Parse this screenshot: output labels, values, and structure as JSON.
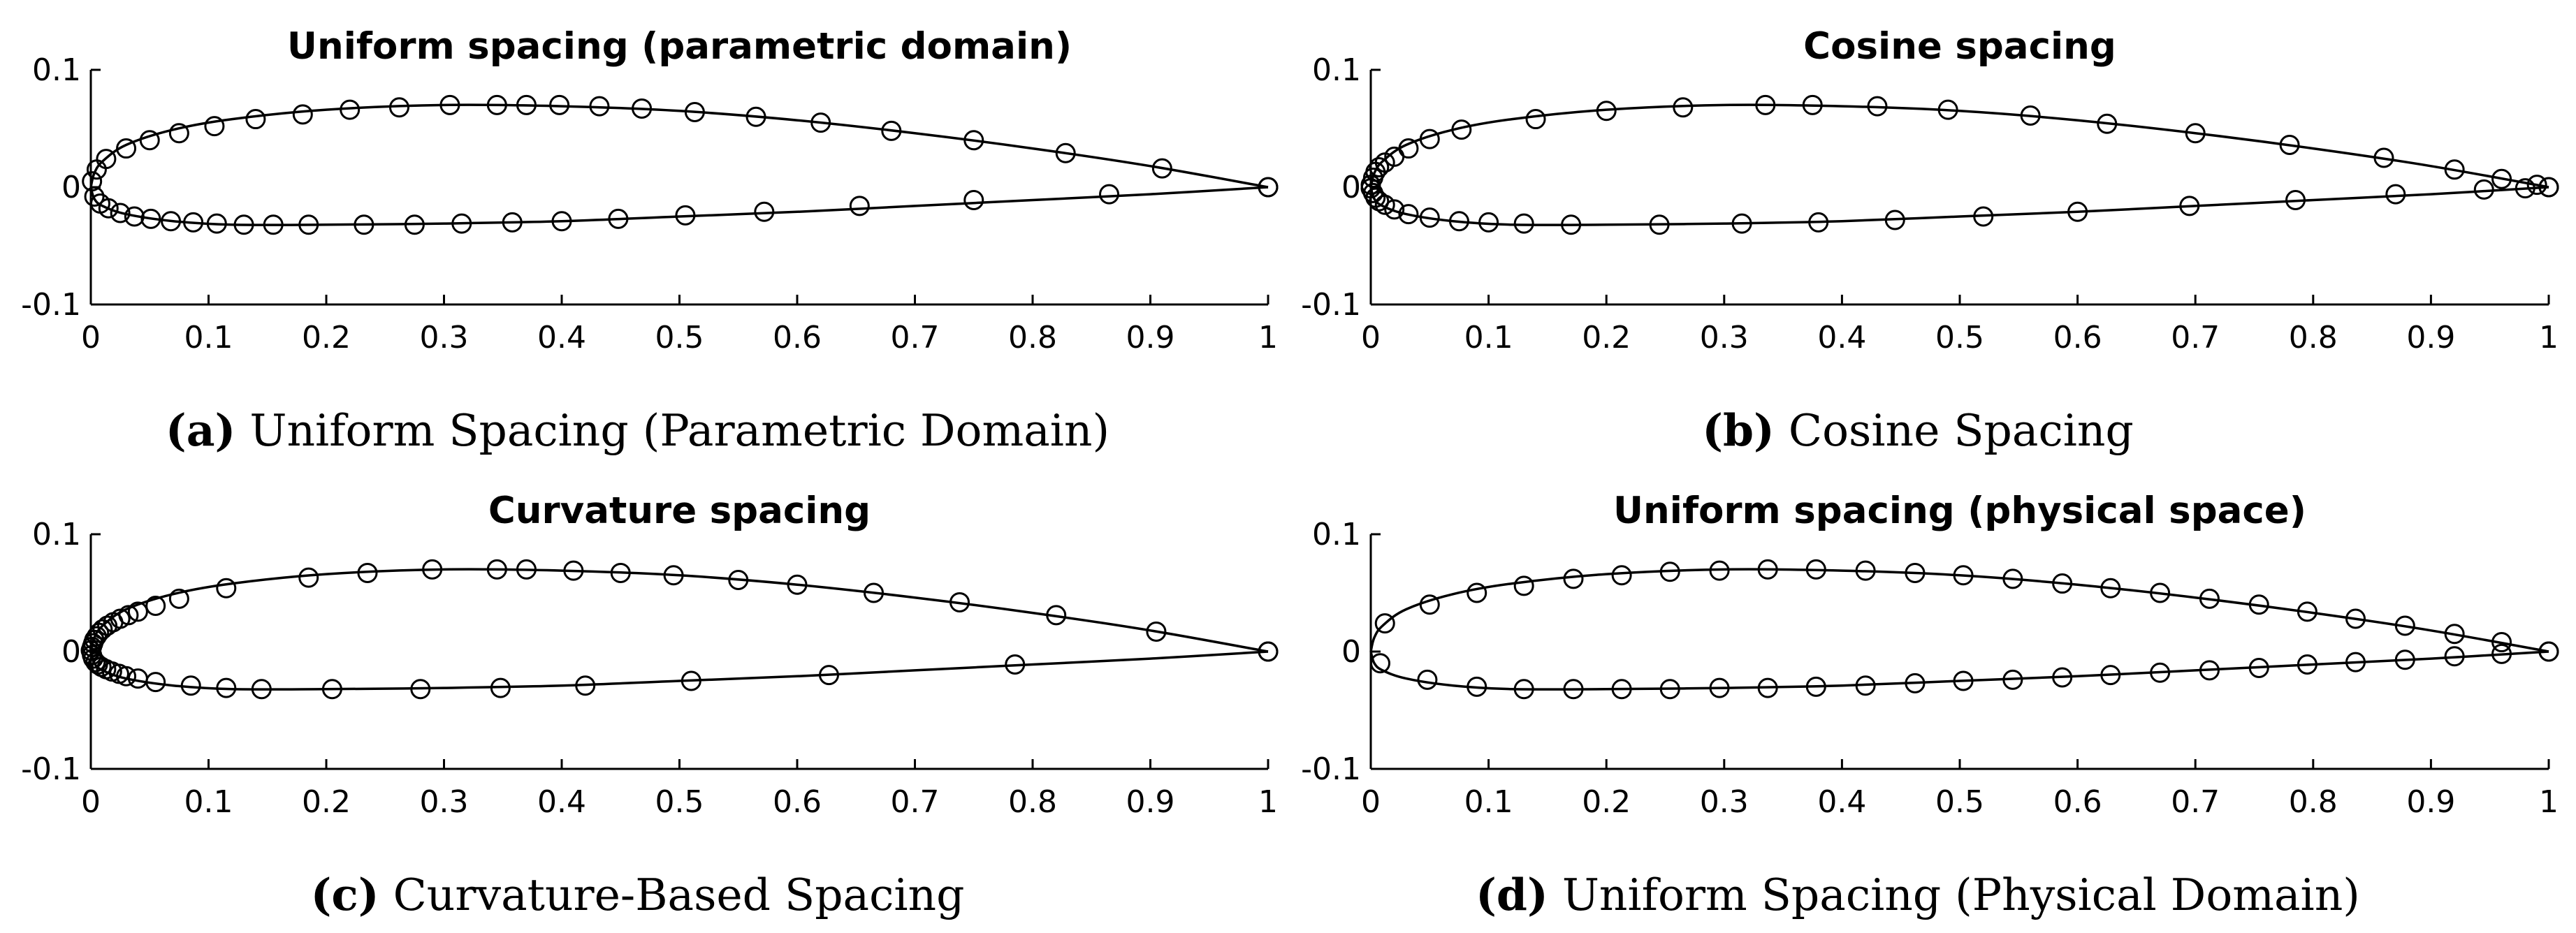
{
  "chart_data": [
    {
      "type": "line",
      "title": "Uniform spacing (parametric domain)",
      "caption_label": "(a)",
      "caption_text": "Uniform Spacing (Parametric Domain)",
      "xlim": [
        0,
        1
      ],
      "ylim": [
        -0.1,
        0.1
      ],
      "xticks": [
        "0",
        "0.1",
        "0.2",
        "0.3",
        "0.4",
        "0.5",
        "0.6",
        "0.7",
        "0.8",
        "0.9",
        "1"
      ],
      "yticks": [
        "0.1",
        "0",
        "-0.1"
      ],
      "grid": false,
      "upper_curve": [
        [
          0,
          0
        ],
        [
          0.003,
          0.012
        ],
        [
          0.01,
          0.022
        ],
        [
          0.03,
          0.036
        ],
        [
          0.07,
          0.049
        ],
        [
          0.12,
          0.058
        ],
        [
          0.2,
          0.066
        ],
        [
          0.3,
          0.07
        ],
        [
          0.4,
          0.069
        ],
        [
          0.5,
          0.065
        ],
        [
          0.6,
          0.057
        ],
        [
          0.7,
          0.046
        ],
        [
          0.8,
          0.033
        ],
        [
          0.9,
          0.018
        ],
        [
          1,
          0
        ]
      ],
      "lower_curve": [
        [
          0,
          0
        ],
        [
          0.003,
          -0.01
        ],
        [
          0.01,
          -0.016
        ],
        [
          0.03,
          -0.023
        ],
        [
          0.07,
          -0.029
        ],
        [
          0.12,
          -0.032
        ],
        [
          0.2,
          -0.032
        ],
        [
          0.3,
          -0.031
        ],
        [
          0.4,
          -0.029
        ],
        [
          0.5,
          -0.025
        ],
        [
          0.6,
          -0.021
        ],
        [
          0.7,
          -0.016
        ],
        [
          0.8,
          -0.011
        ],
        [
          0.9,
          -0.006
        ],
        [
          1,
          0
        ]
      ],
      "markers_upper": [
        [
          0.001,
          0.005
        ],
        [
          0.005,
          0.015
        ],
        [
          0.013,
          0.024
        ],
        [
          0.03,
          0.033
        ],
        [
          0.05,
          0.04
        ],
        [
          0.075,
          0.046
        ],
        [
          0.105,
          0.052
        ],
        [
          0.14,
          0.058
        ],
        [
          0.18,
          0.062
        ],
        [
          0.22,
          0.066
        ],
        [
          0.262,
          0.068
        ],
        [
          0.305,
          0.07
        ],
        [
          0.345,
          0.07
        ],
        [
          0.37,
          0.07
        ],
        [
          0.398,
          0.07
        ],
        [
          0.432,
          0.069
        ],
        [
          0.468,
          0.067
        ],
        [
          0.513,
          0.064
        ],
        [
          0.565,
          0.06
        ],
        [
          0.62,
          0.055
        ],
        [
          0.68,
          0.048
        ],
        [
          0.75,
          0.04
        ],
        [
          0.828,
          0.029
        ],
        [
          0.91,
          0.016
        ],
        [
          1,
          0
        ]
      ],
      "markers_lower": [
        [
          0.003,
          -0.008
        ],
        [
          0.008,
          -0.014
        ],
        [
          0.015,
          -0.018
        ],
        [
          0.025,
          -0.022
        ],
        [
          0.037,
          -0.025
        ],
        [
          0.051,
          -0.027
        ],
        [
          0.068,
          -0.029
        ],
        [
          0.087,
          -0.03
        ],
        [
          0.107,
          -0.031
        ],
        [
          0.13,
          -0.032
        ],
        [
          0.155,
          -0.032
        ],
        [
          0.185,
          -0.032
        ],
        [
          0.232,
          -0.032
        ],
        [
          0.275,
          -0.032
        ],
        [
          0.315,
          -0.031
        ],
        [
          0.358,
          -0.03
        ],
        [
          0.4,
          -0.029
        ],
        [
          0.448,
          -0.027
        ],
        [
          0.505,
          -0.024
        ],
        [
          0.572,
          -0.021
        ],
        [
          0.653,
          -0.016
        ],
        [
          0.75,
          -0.011
        ],
        [
          0.865,
          -0.006
        ],
        [
          1,
          0
        ]
      ]
    },
    {
      "type": "line",
      "title": "Cosine spacing",
      "caption_label": "(b)",
      "caption_text": "Cosine Spacing",
      "xlim": [
        0,
        1
      ],
      "ylim": [
        -0.1,
        0.1
      ],
      "xticks": [
        "0",
        "0.1",
        "0.2",
        "0.3",
        "0.4",
        "0.5",
        "0.6",
        "0.7",
        "0.8",
        "0.9",
        "1"
      ],
      "yticks": [
        "0.1",
        "0",
        "-0.1"
      ],
      "grid": false,
      "upper_curve": [
        [
          0,
          0
        ],
        [
          0.003,
          0.012
        ],
        [
          0.01,
          0.022
        ],
        [
          0.03,
          0.036
        ],
        [
          0.07,
          0.049
        ],
        [
          0.12,
          0.058
        ],
        [
          0.2,
          0.066
        ],
        [
          0.3,
          0.07
        ],
        [
          0.4,
          0.069
        ],
        [
          0.5,
          0.065
        ],
        [
          0.6,
          0.057
        ],
        [
          0.7,
          0.046
        ],
        [
          0.8,
          0.033
        ],
        [
          0.9,
          0.018
        ],
        [
          1,
          0
        ]
      ],
      "lower_curve": [
        [
          0,
          0
        ],
        [
          0.003,
          -0.01
        ],
        [
          0.01,
          -0.016
        ],
        [
          0.03,
          -0.023
        ],
        [
          0.07,
          -0.029
        ],
        [
          0.12,
          -0.032
        ],
        [
          0.2,
          -0.032
        ],
        [
          0.3,
          -0.031
        ],
        [
          0.4,
          -0.029
        ],
        [
          0.5,
          -0.025
        ],
        [
          0.6,
          -0.021
        ],
        [
          0.7,
          -0.016
        ],
        [
          0.8,
          -0.011
        ],
        [
          0.9,
          -0.006
        ],
        [
          1,
          0
        ]
      ],
      "markers_upper": [
        [
          0,
          0.002
        ],
        [
          0.002,
          0.008
        ],
        [
          0.004,
          0.013
        ],
        [
          0.007,
          0.017
        ],
        [
          0.012,
          0.021
        ],
        [
          0.02,
          0.026
        ],
        [
          0.032,
          0.033
        ],
        [
          0.05,
          0.041
        ],
        [
          0.077,
          0.049
        ],
        [
          0.14,
          0.058
        ],
        [
          0.2,
          0.065
        ],
        [
          0.265,
          0.068
        ],
        [
          0.335,
          0.07
        ],
        [
          0.375,
          0.07
        ],
        [
          0.43,
          0.069
        ],
        [
          0.49,
          0.066
        ],
        [
          0.56,
          0.061
        ],
        [
          0.625,
          0.054
        ],
        [
          0.7,
          0.046
        ],
        [
          0.78,
          0.036
        ],
        [
          0.86,
          0.025
        ],
        [
          0.92,
          0.015
        ],
        [
          0.96,
          0.007
        ],
        [
          0.99,
          0.002
        ],
        [
          1,
          0
        ]
      ],
      "markers_lower": [
        [
          0,
          -0.001
        ],
        [
          0.002,
          -0.005
        ],
        [
          0.004,
          -0.009
        ],
        [
          0.007,
          -0.012
        ],
        [
          0.012,
          -0.015
        ],
        [
          0.02,
          -0.019
        ],
        [
          0.032,
          -0.023
        ],
        [
          0.05,
          -0.026
        ],
        [
          0.075,
          -0.029
        ],
        [
          0.1,
          -0.03
        ],
        [
          0.13,
          -0.031
        ],
        [
          0.17,
          -0.032
        ],
        [
          0.245,
          -0.032
        ],
        [
          0.315,
          -0.031
        ],
        [
          0.38,
          -0.03
        ],
        [
          0.445,
          -0.028
        ],
        [
          0.52,
          -0.025
        ],
        [
          0.6,
          -0.021
        ],
        [
          0.695,
          -0.016
        ],
        [
          0.785,
          -0.011
        ],
        [
          0.87,
          -0.006
        ],
        [
          0.945,
          -0.002
        ],
        [
          0.98,
          -0.001
        ],
        [
          1,
          0
        ]
      ]
    },
    {
      "type": "line",
      "title": "Curvature spacing",
      "caption_label": "(c)",
      "caption_text": "Curvature-Based Spacing",
      "xlim": [
        0,
        1
      ],
      "ylim": [
        -0.1,
        0.1
      ],
      "xticks": [
        "0",
        "0.1",
        "0.2",
        "0.3",
        "0.4",
        "0.5",
        "0.6",
        "0.7",
        "0.8",
        "0.9",
        "1"
      ],
      "yticks": [
        "0.1",
        "0",
        "-0.1"
      ],
      "grid": false,
      "upper_curve": [
        [
          0,
          0
        ],
        [
          0.003,
          0.012
        ],
        [
          0.01,
          0.022
        ],
        [
          0.03,
          0.036
        ],
        [
          0.07,
          0.049
        ],
        [
          0.12,
          0.058
        ],
        [
          0.2,
          0.066
        ],
        [
          0.3,
          0.07
        ],
        [
          0.4,
          0.069
        ],
        [
          0.5,
          0.065
        ],
        [
          0.6,
          0.057
        ],
        [
          0.7,
          0.046
        ],
        [
          0.8,
          0.033
        ],
        [
          0.9,
          0.018
        ],
        [
          1,
          0
        ]
      ],
      "lower_curve": [
        [
          0,
          0
        ],
        [
          0.003,
          -0.01
        ],
        [
          0.01,
          -0.016
        ],
        [
          0.03,
          -0.023
        ],
        [
          0.07,
          -0.029
        ],
        [
          0.12,
          -0.032
        ],
        [
          0.2,
          -0.032
        ],
        [
          0.3,
          -0.031
        ],
        [
          0.4,
          -0.029
        ],
        [
          0.5,
          -0.025
        ],
        [
          0.6,
          -0.021
        ],
        [
          0.7,
          -0.016
        ],
        [
          0.8,
          -0.011
        ],
        [
          0.9,
          -0.006
        ],
        [
          1,
          0
        ]
      ],
      "markers_upper": [
        [
          0,
          0.001
        ],
        [
          0.001,
          0.004
        ],
        [
          0.002,
          0.007
        ],
        [
          0.003,
          0.01
        ],
        [
          0.005,
          0.013
        ],
        [
          0.007,
          0.016
        ],
        [
          0.01,
          0.019
        ],
        [
          0.014,
          0.022
        ],
        [
          0.019,
          0.025
        ],
        [
          0.025,
          0.028
        ],
        [
          0.032,
          0.031
        ],
        [
          0.04,
          0.034
        ],
        [
          0.055,
          0.039
        ],
        [
          0.075,
          0.045
        ],
        [
          0.115,
          0.054
        ],
        [
          0.185,
          0.063
        ],
        [
          0.235,
          0.067
        ],
        [
          0.29,
          0.07
        ],
        [
          0.345,
          0.07
        ],
        [
          0.37,
          0.07
        ],
        [
          0.41,
          0.069
        ],
        [
          0.45,
          0.067
        ],
        [
          0.495,
          0.065
        ],
        [
          0.55,
          0.061
        ],
        [
          0.6,
          0.057
        ],
        [
          0.665,
          0.05
        ],
        [
          0.738,
          0.042
        ],
        [
          0.82,
          0.031
        ],
        [
          0.905,
          0.017
        ],
        [
          1,
          0
        ]
      ],
      "markers_lower": [
        [
          0.001,
          -0.003
        ],
        [
          0.002,
          -0.006
        ],
        [
          0.004,
          -0.009
        ],
        [
          0.006,
          -0.011
        ],
        [
          0.009,
          -0.013
        ],
        [
          0.013,
          -0.015
        ],
        [
          0.018,
          -0.017
        ],
        [
          0.024,
          -0.019
        ],
        [
          0.03,
          -0.021
        ],
        [
          0.04,
          -0.023
        ],
        [
          0.055,
          -0.026
        ],
        [
          0.085,
          -0.029
        ],
        [
          0.115,
          -0.031
        ],
        [
          0.145,
          -0.032
        ],
        [
          0.205,
          -0.032
        ],
        [
          0.28,
          -0.032
        ],
        [
          0.348,
          -0.031
        ],
        [
          0.42,
          -0.029
        ],
        [
          0.51,
          -0.025
        ],
        [
          0.627,
          -0.02
        ],
        [
          0.785,
          -0.011
        ],
        [
          1,
          0
        ]
      ]
    },
    {
      "type": "line",
      "title": "Uniform spacing (physical space)",
      "caption_label": "(d)",
      "caption_text": "Uniform Spacing (Physical Domain)",
      "xlim": [
        0,
        1
      ],
      "ylim": [
        -0.1,
        0.1
      ],
      "xticks": [
        "0",
        "0.1",
        "0.2",
        "0.3",
        "0.4",
        "0.5",
        "0.6",
        "0.7",
        "0.8",
        "0.9",
        "1"
      ],
      "yticks": [
        "0.1",
        "0",
        "-0.1"
      ],
      "grid": false,
      "upper_curve": [
        [
          0,
          0
        ],
        [
          0.003,
          0.012
        ],
        [
          0.01,
          0.022
        ],
        [
          0.03,
          0.036
        ],
        [
          0.07,
          0.049
        ],
        [
          0.12,
          0.058
        ],
        [
          0.2,
          0.066
        ],
        [
          0.3,
          0.07
        ],
        [
          0.4,
          0.069
        ],
        [
          0.5,
          0.065
        ],
        [
          0.6,
          0.057
        ],
        [
          0.7,
          0.046
        ],
        [
          0.8,
          0.033
        ],
        [
          0.9,
          0.018
        ],
        [
          1,
          0
        ]
      ],
      "lower_curve": [
        [
          0,
          0
        ],
        [
          0.003,
          -0.01
        ],
        [
          0.01,
          -0.016
        ],
        [
          0.03,
          -0.023
        ],
        [
          0.07,
          -0.029
        ],
        [
          0.12,
          -0.032
        ],
        [
          0.2,
          -0.032
        ],
        [
          0.3,
          -0.031
        ],
        [
          0.4,
          -0.029
        ],
        [
          0.5,
          -0.025
        ],
        [
          0.6,
          -0.021
        ],
        [
          0.7,
          -0.016
        ],
        [
          0.8,
          -0.011
        ],
        [
          0.9,
          -0.006
        ],
        [
          1,
          0
        ]
      ],
      "markers_upper": [
        [
          0.012,
          0.024
        ],
        [
          0.05,
          0.04
        ],
        [
          0.09,
          0.05
        ],
        [
          0.13,
          0.056
        ],
        [
          0.172,
          0.062
        ],
        [
          0.213,
          0.065
        ],
        [
          0.254,
          0.068
        ],
        [
          0.296,
          0.069
        ],
        [
          0.337,
          0.07
        ],
        [
          0.378,
          0.07
        ],
        [
          0.42,
          0.069
        ],
        [
          0.462,
          0.067
        ],
        [
          0.503,
          0.065
        ],
        [
          0.545,
          0.062
        ],
        [
          0.587,
          0.058
        ],
        [
          0.628,
          0.054
        ],
        [
          0.67,
          0.05
        ],
        [
          0.712,
          0.045
        ],
        [
          0.754,
          0.04
        ],
        [
          0.795,
          0.034
        ],
        [
          0.836,
          0.028
        ],
        [
          0.878,
          0.022
        ],
        [
          0.92,
          0.015
        ],
        [
          0.96,
          0.008
        ],
        [
          1,
          0
        ]
      ],
      "markers_lower": [
        [
          0.008,
          -0.01
        ],
        [
          0.048,
          -0.024
        ],
        [
          0.09,
          -0.03
        ],
        [
          0.13,
          -0.032
        ],
        [
          0.172,
          -0.032
        ],
        [
          0.213,
          -0.032
        ],
        [
          0.254,
          -0.032
        ],
        [
          0.296,
          -0.031
        ],
        [
          0.337,
          -0.031
        ],
        [
          0.378,
          -0.03
        ],
        [
          0.42,
          -0.029
        ],
        [
          0.462,
          -0.027
        ],
        [
          0.503,
          -0.025
        ],
        [
          0.545,
          -0.024
        ],
        [
          0.587,
          -0.022
        ],
        [
          0.628,
          -0.02
        ],
        [
          0.67,
          -0.018
        ],
        [
          0.712,
          -0.016
        ],
        [
          0.754,
          -0.014
        ],
        [
          0.795,
          -0.011
        ],
        [
          0.836,
          -0.009
        ],
        [
          0.878,
          -0.007
        ],
        [
          0.92,
          -0.004
        ],
        [
          0.96,
          -0.002
        ],
        [
          1,
          0
        ]
      ]
    }
  ]
}
